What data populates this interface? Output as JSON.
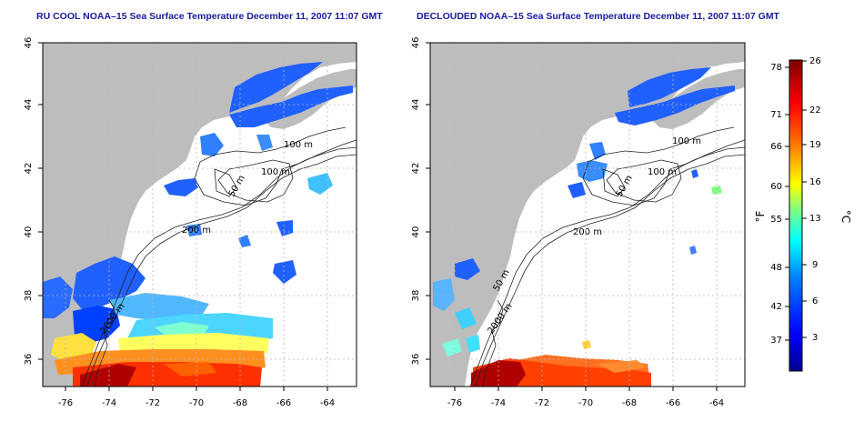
{
  "maps": [
    {
      "title": "RU COOL NOAA–15 Sea Surface Temperature December 11, 2007 11:07 GMT",
      "x_ticks": [
        "-76",
        "-74",
        "-72",
        "-70",
        "-68",
        "-66",
        "-64"
      ],
      "y_ticks": [
        "36",
        "38",
        "40",
        "42",
        "44",
        "46"
      ],
      "contour_labels": [
        "100 m",
        "100 m",
        "50 m",
        "200 m",
        "2000 m"
      ]
    },
    {
      "title": "DECLOUDED NOAA–15 Sea Surface Temperature December 11, 2007 11:07 GMT",
      "x_ticks": [
        "-76",
        "-74",
        "-72",
        "-70",
        "-68",
        "-66",
        "-64"
      ],
      "y_ticks": [
        "36",
        "38",
        "40",
        "42",
        "44",
        "46"
      ],
      "contour_labels": [
        "100 m",
        "100 m",
        "50 m",
        "200 m",
        "50 m",
        "2000 m"
      ]
    }
  ],
  "colorbar": {
    "fahrenheit_label": "°F",
    "celsius_label": "°C",
    "fahrenheit_ticks": [
      "78",
      "71",
      "66",
      "60",
      "55",
      "48",
      "42",
      "37"
    ],
    "celsius_ticks": [
      "26",
      "22",
      "19",
      "16",
      "13",
      "9",
      "6",
      "3"
    ],
    "colors": [
      "#00008f",
      "#0000ff",
      "#0080ff",
      "#00ffff",
      "#80ff80",
      "#ffff00",
      "#ff8000",
      "#ff0000",
      "#800000"
    ]
  },
  "colors": {
    "land": "#bdbdbd",
    "title": "#1a1aa0",
    "grid": "#b5b5b5"
  }
}
